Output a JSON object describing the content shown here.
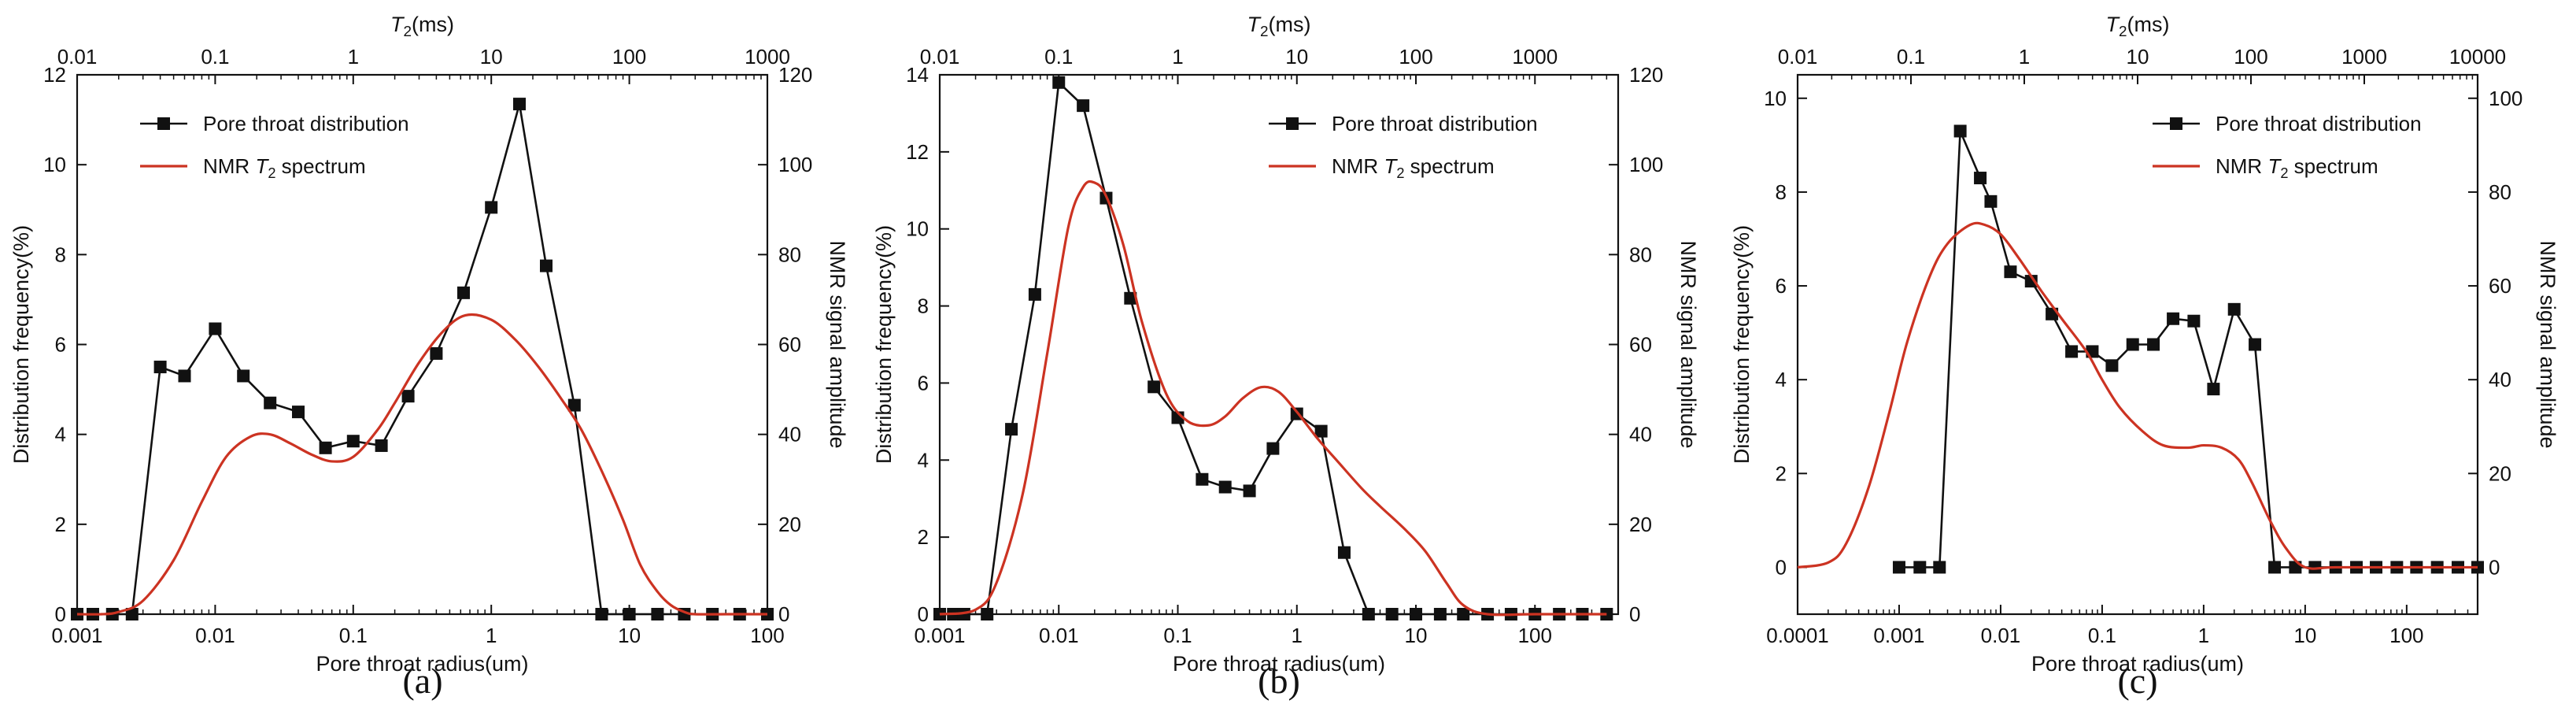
{
  "colors": {
    "pore": "#111111",
    "nmr": "#cc3322",
    "axis": "#111111"
  },
  "chart_data": [
    {
      "type": "line",
      "panel_label": "(a)",
      "xlabel": "Pore throat radius(um)",
      "ylabel_left": "Distribution frequency(%)",
      "ylabel_right": "NMR signal amplitude",
      "top_axis_label": "T2(ms)",
      "xscale": "log",
      "xlim": [
        0.001,
        100
      ],
      "x_ticks": [
        "0.001",
        "0.01",
        "0.1",
        "1",
        "10",
        "100"
      ],
      "top_xlim": [
        0.01,
        1000
      ],
      "top_ticks": [
        "0.01",
        "0.1",
        "1",
        "10",
        "100",
        "1000"
      ],
      "ylim_left": [
        0,
        12
      ],
      "y_ticks_left": [
        "0",
        "2",
        "4",
        "6",
        "8",
        "10",
        "12"
      ],
      "ylim_right": [
        0,
        120
      ],
      "y_ticks_right": [
        "0",
        "20",
        "40",
        "60",
        "80",
        "100",
        "120"
      ],
      "legend": {
        "position": "top-left",
        "entries": [
          "Pore throat distribution",
          "NMR T2 spectrum"
        ]
      },
      "series": [
        {
          "name": "Pore throat distribution",
          "axis": "left",
          "marker": "square",
          "x": [
            0.001,
            0.0013,
            0.0018,
            0.0025,
            0.004,
            0.006,
            0.01,
            0.016,
            0.025,
            0.04,
            0.063,
            0.1,
            0.16,
            0.25,
            0.4,
            0.63,
            1.0,
            1.6,
            2.5,
            4.0,
            6.3,
            10,
            16,
            25,
            40,
            63,
            100
          ],
          "values": [
            0,
            0,
            0,
            0,
            5.5,
            5.3,
            6.35,
            5.3,
            4.7,
            4.5,
            3.7,
            3.85,
            3.75,
            4.85,
            5.8,
            7.15,
            9.05,
            11.35,
            7.75,
            4.65,
            0,
            0,
            0,
            0,
            0,
            0,
            0
          ]
        },
        {
          "name": "NMR T2 spectrum",
          "axis": "right",
          "x": [
            0.001,
            0.0015,
            0.002,
            0.003,
            0.005,
            0.008,
            0.012,
            0.018,
            0.025,
            0.035,
            0.05,
            0.07,
            0.1,
            0.15,
            0.2,
            0.3,
            0.45,
            0.65,
            1.0,
            1.5,
            2.2,
            3.2,
            4.5,
            6.5,
            9,
            12,
            16,
            20,
            25,
            30,
            50,
            100
          ],
          "values": [
            0,
            0,
            0.5,
            3,
            12,
            25,
            35,
            39.5,
            40,
            38,
            35.5,
            34,
            35,
            41,
            47,
            56,
            63,
            66.5,
            65.5,
            61,
            55,
            48,
            41,
            31,
            21,
            11,
            5,
            2,
            0.5,
            0,
            0,
            0
          ]
        }
      ]
    },
    {
      "type": "line",
      "panel_label": "(b)",
      "xlabel": "Pore throat radius(um)",
      "ylabel_left": "Distribution frequency(%)",
      "ylabel_right": "NMR signal amplitude",
      "top_axis_label": "T2(ms)",
      "xscale": "log",
      "xlim": [
        0.001,
        500
      ],
      "x_ticks": [
        "0.001",
        "0.01",
        "0.1",
        "1",
        "10",
        "100"
      ],
      "top_xlim": [
        0.01,
        5000
      ],
      "top_ticks": [
        "0.01",
        "0.1",
        "1",
        "10",
        "100",
        "1000"
      ],
      "ylim_left": [
        0,
        14
      ],
      "y_ticks_left": [
        "0",
        "2",
        "4",
        "6",
        "8",
        "10",
        "12",
        "14"
      ],
      "ylim_right": [
        0,
        120
      ],
      "y_ticks_right": [
        "0",
        "20",
        "40",
        "60",
        "80",
        "100",
        "120"
      ],
      "legend": {
        "position": "top-right",
        "entries": [
          "Pore throat distribution",
          "NMR T2 spectrum"
        ]
      },
      "series": [
        {
          "name": "Pore throat distribution",
          "axis": "left",
          "marker": "square",
          "x": [
            0.001,
            0.0013,
            0.0016,
            0.0025,
            0.004,
            0.0063,
            0.01,
            0.016,
            0.025,
            0.04,
            0.063,
            0.1,
            0.16,
            0.25,
            0.4,
            0.63,
            1.0,
            1.6,
            2.5,
            4.0,
            6.3,
            10,
            16,
            25,
            40,
            63,
            100,
            160,
            250,
            400
          ],
          "values": [
            0,
            0,
            0,
            0,
            4.8,
            8.3,
            13.8,
            13.2,
            10.8,
            8.2,
            5.9,
            5.1,
            3.5,
            3.3,
            3.2,
            4.3,
            5.2,
            4.75,
            1.6,
            0,
            0,
            0,
            0,
            0,
            0,
            0,
            0,
            0,
            0,
            0
          ]
        },
        {
          "name": "NMR T2 spectrum",
          "axis": "right",
          "x": [
            0.001,
            0.002,
            0.003,
            0.005,
            0.008,
            0.012,
            0.016,
            0.02,
            0.025,
            0.035,
            0.05,
            0.08,
            0.12,
            0.18,
            0.25,
            0.35,
            0.5,
            0.7,
            1.0,
            1.5,
            2.2,
            3.5,
            5,
            8,
            12,
            18,
            25,
            40,
            100,
            400
          ],
          "values": [
            0,
            1,
            7,
            27,
            58,
            86,
            95,
            96,
            93,
            82,
            65,
            49,
            43,
            42,
            44,
            48,
            50.5,
            49.5,
            45,
            39,
            34,
            28,
            24,
            19,
            14,
            7,
            2,
            0,
            0,
            0
          ]
        }
      ]
    },
    {
      "type": "line",
      "panel_label": "(c)",
      "xlabel": "Pore throat radius(um)",
      "ylabel_left": "Distribution frequency(%)",
      "ylabel_right": "NMR signal amplitude",
      "top_axis_label": "T2(ms)",
      "xscale": "log",
      "xlim": [
        0.0001,
        500
      ],
      "x_ticks": [
        "0.0001",
        "0.001",
        "0.01",
        "0.1",
        "1",
        "10",
        "100"
      ],
      "top_xlim": [
        0.01,
        10000
      ],
      "top_ticks": [
        "0.01",
        "0.1",
        "1",
        "10",
        "100",
        "1000",
        "10000"
      ],
      "ylim_left": [
        -1,
        10.5
      ],
      "y_ticks_left": [
        "0",
        "2",
        "4",
        "6",
        "8",
        "10"
      ],
      "ylim_right": [
        -10,
        105
      ],
      "y_ticks_right": [
        "0",
        "20",
        "40",
        "60",
        "80",
        "100"
      ],
      "legend": {
        "position": "top-right",
        "entries": [
          "Pore throat distribution",
          "NMR T2 spectrum"
        ]
      },
      "series": [
        {
          "name": "Pore throat distribution",
          "axis": "left",
          "marker": "square",
          "x": [
            0.001,
            0.0016,
            0.0025,
            0.004,
            0.0063,
            0.008,
            0.0125,
            0.02,
            0.032,
            0.05,
            0.08,
            0.125,
            0.2,
            0.32,
            0.5,
            0.8,
            1.25,
            2.0,
            3.2,
            5.0,
            8.0,
            12.5,
            20,
            32,
            50,
            80,
            125,
            200,
            320,
            500
          ],
          "values": [
            0,
            0,
            0,
            9.3,
            8.3,
            7.8,
            6.3,
            6.1,
            5.4,
            4.6,
            4.6,
            4.3,
            4.75,
            4.75,
            5.3,
            5.25,
            3.8,
            5.5,
            4.75,
            0,
            0,
            0,
            0,
            0,
            0,
            0,
            0,
            0,
            0,
            0
          ]
        },
        {
          "name": "NMR T2 spectrum",
          "axis": "right",
          "x": [
            0.0001,
            0.0002,
            0.0003,
            0.0005,
            0.0008,
            0.0012,
            0.002,
            0.003,
            0.005,
            0.007,
            0.01,
            0.015,
            0.025,
            0.04,
            0.07,
            0.1,
            0.15,
            0.25,
            0.4,
            0.7,
            1.0,
            1.5,
            2.2,
            3.0,
            4.5,
            6.5,
            10,
            20,
            100,
            500
          ],
          "values": [
            0,
            1,
            5,
            17,
            33,
            48,
            62,
            69,
            73,
            73,
            71,
            66,
            59,
            53,
            46,
            40,
            34,
            29,
            26,
            25.5,
            26,
            25.5,
            23,
            18,
            10,
            4,
            0,
            0,
            0,
            0
          ]
        }
      ]
    }
  ]
}
